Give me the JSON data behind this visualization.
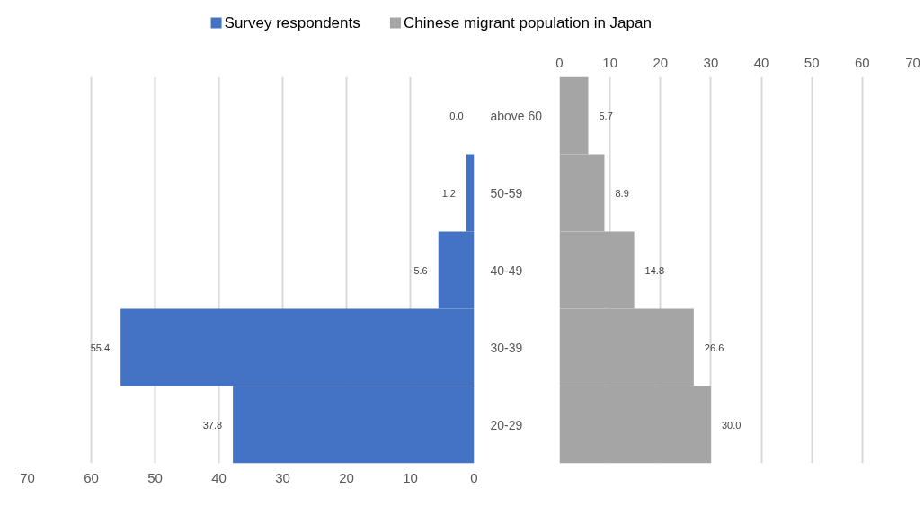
{
  "chart_data": [
    {
      "type": "bar",
      "orientation": "horizontal",
      "categories": [
        "above 60",
        "50-59",
        "40-49",
        "30-39",
        "20-29"
      ],
      "series": [
        {
          "name": "Survey respondents",
          "color": "#4472c4",
          "values": [
            0.0,
            1.2,
            5.6,
            55.4,
            37.8
          ],
          "value_labels": [
            "0.0",
            "1.2",
            "5.6",
            "55.4",
            "37.8"
          ]
        }
      ],
      "xlim": [
        70,
        0
      ],
      "xticks": [
        70,
        60,
        50,
        40,
        30,
        20,
        10,
        0
      ],
      "grid": "x",
      "legend": "top",
      "data_labels": true
    },
    {
      "type": "bar",
      "orientation": "horizontal",
      "categories": [
        null,
        null,
        null,
        null,
        null
      ],
      "series": [
        {
          "name": "Chinese migrant population in Japan",
          "color": "#a5a5a5",
          "values": [
            5.7,
            8.9,
            14.8,
            26.6,
            30.0
          ],
          "value_labels": [
            "5.7",
            "8.9",
            "14.8",
            "26.6",
            "30.0"
          ]
        }
      ],
      "xlim": [
        0,
        70
      ],
      "xticks": [
        0,
        10,
        20,
        30,
        40,
        50,
        60,
        70
      ],
      "grid": "x",
      "legend": "top",
      "tick_labels": "x",
      "data_labels": true
    }
  ]
}
